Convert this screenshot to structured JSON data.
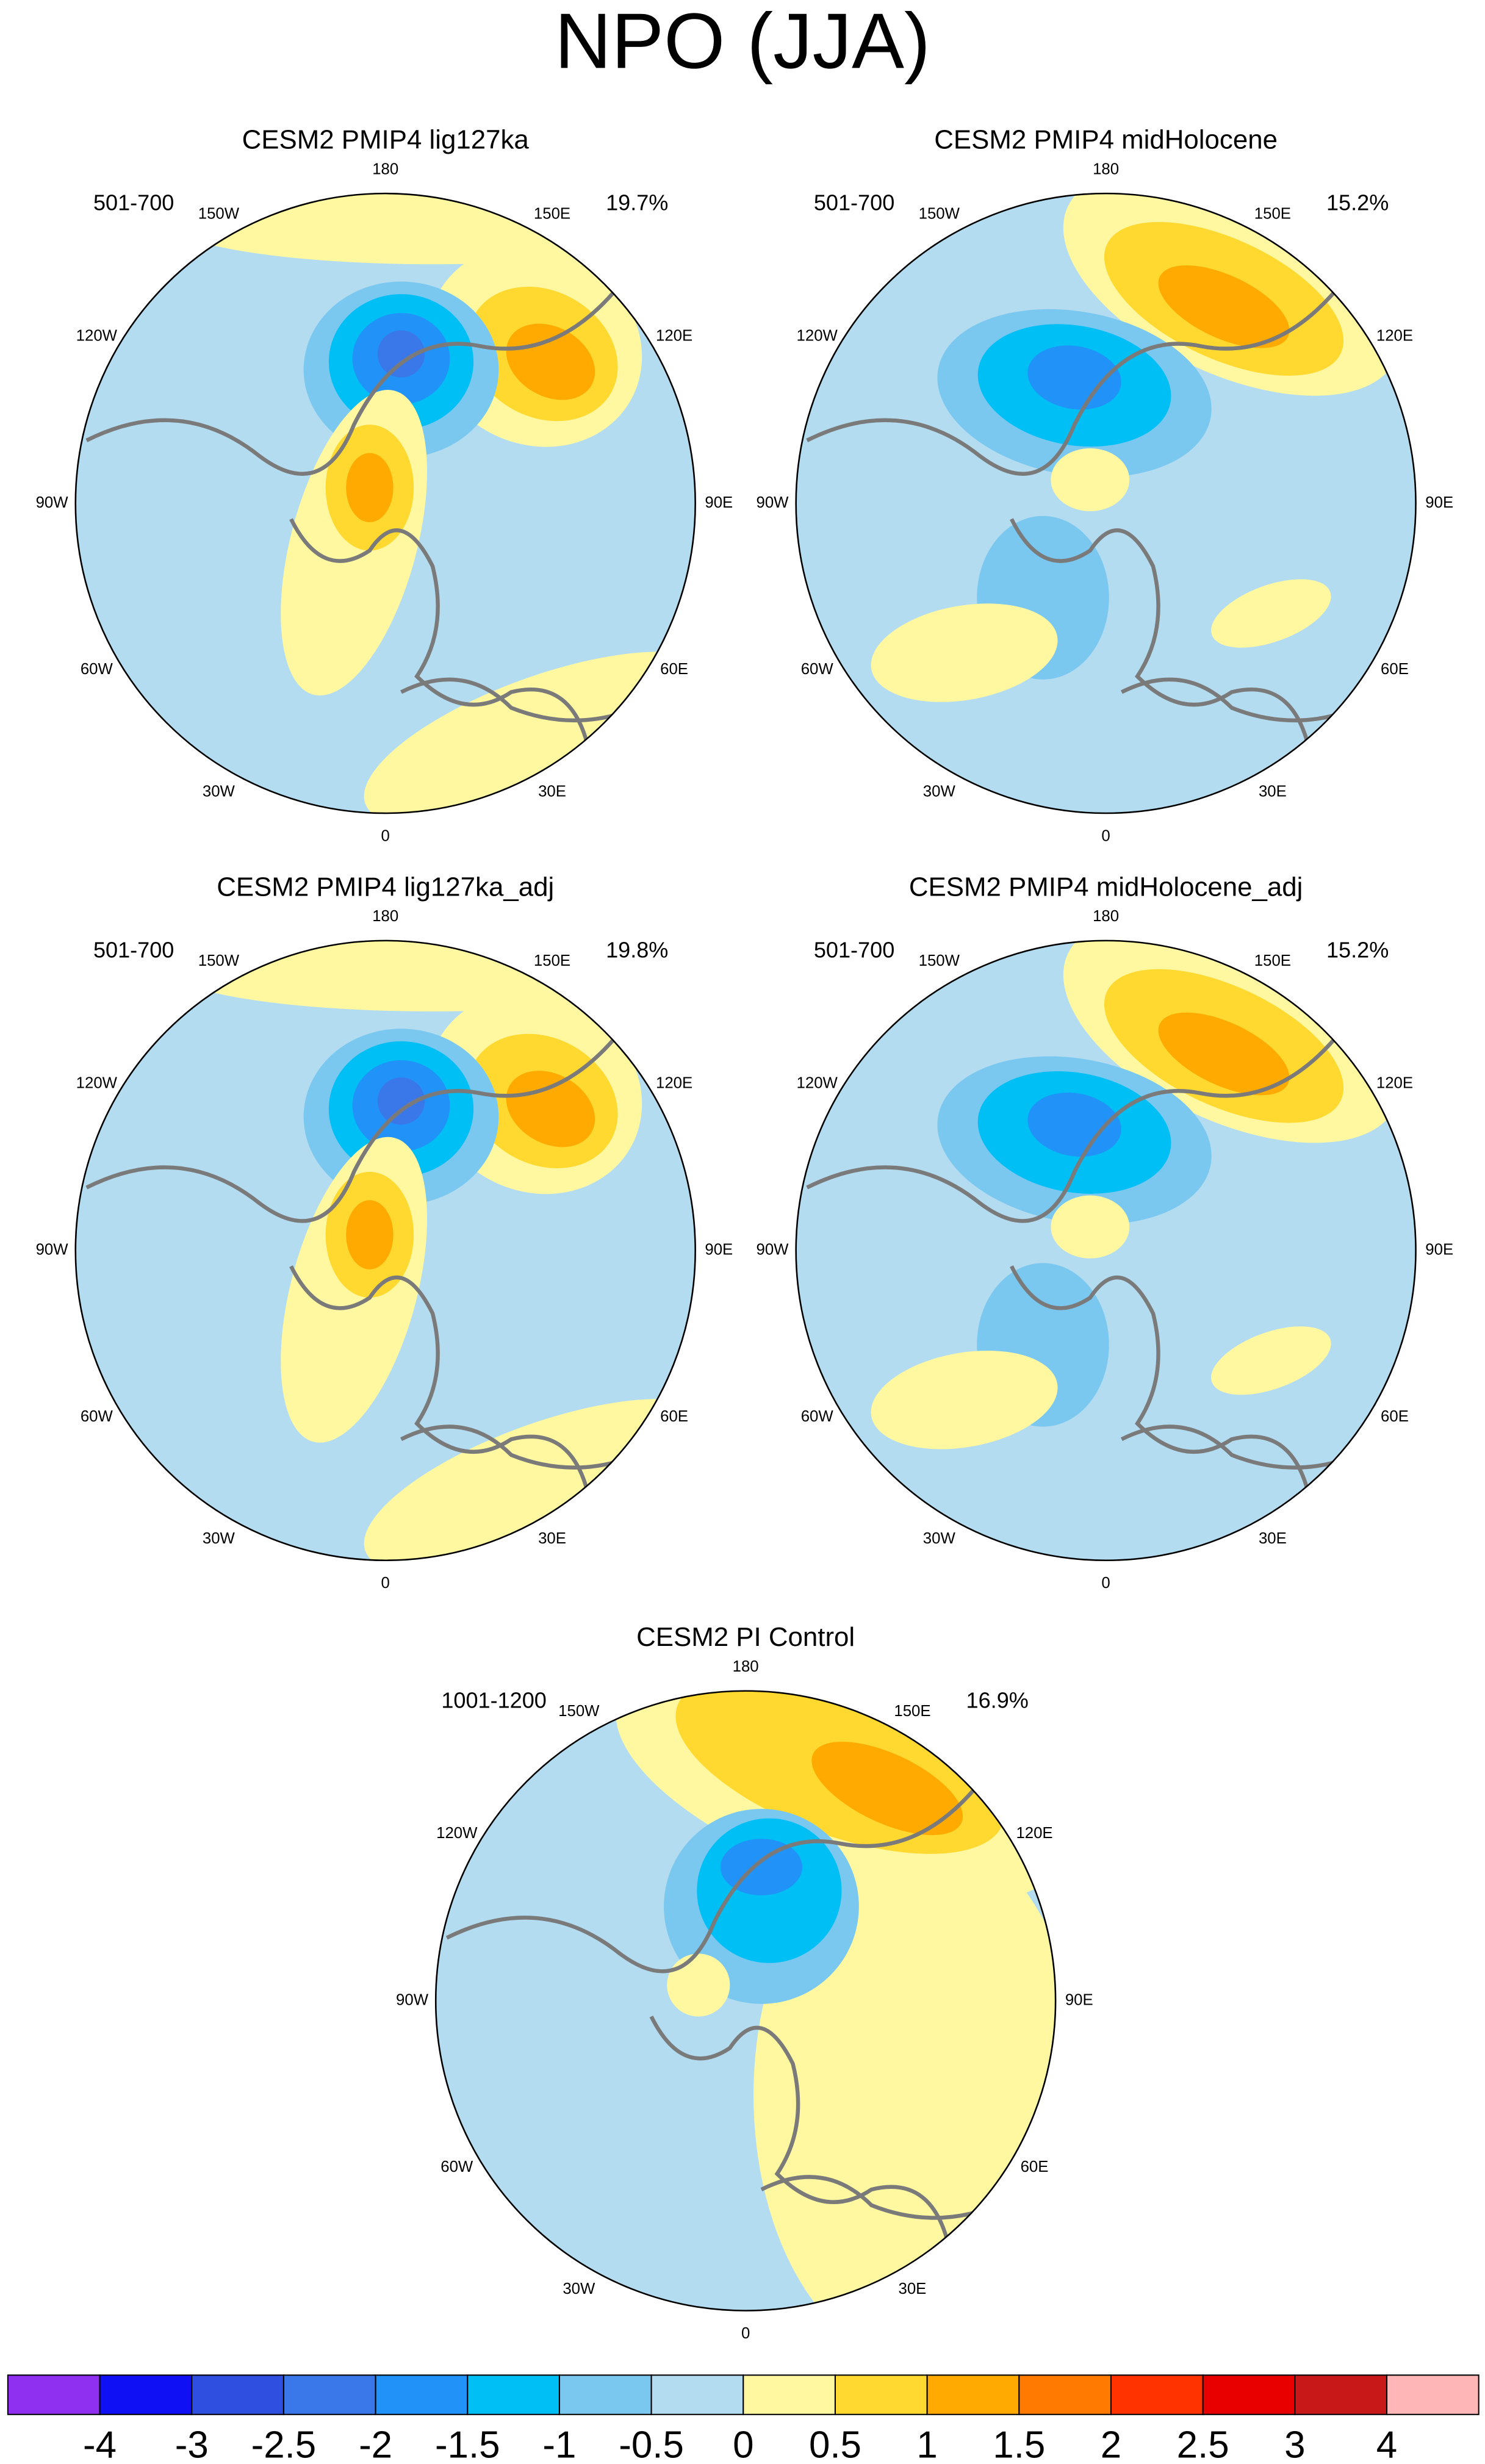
{
  "title": "NPO (JJA)",
  "panels": [
    {
      "title": "CESM2 PMIP4 lig127ka",
      "period": "501-700",
      "variance": "19.7%"
    },
    {
      "title": "CESM2 PMIP4 midHolocene",
      "period": "501-700",
      "variance": "15.2%"
    },
    {
      "title": "CESM2 PMIP4 lig127ka_adj",
      "period": "501-700",
      "variance": "19.8%"
    },
    {
      "title": "CESM2 PMIP4 midHolocene_adj",
      "period": "501-700",
      "variance": "15.2%"
    },
    {
      "title": "CESM2 PI Control",
      "period": "1001-1200",
      "variance": "16.9%"
    }
  ],
  "longitude_labels": [
    "180",
    "150E",
    "120E",
    "90E",
    "60E",
    "30E",
    "0",
    "30W",
    "60W",
    "90W",
    "120W",
    "150W"
  ],
  "colorbar": {
    "labels": [
      -4,
      -3,
      -2.5,
      -2,
      -1.5,
      -1,
      -0.5,
      0,
      0.5,
      1,
      1.5,
      2,
      2.5,
      3,
      4
    ],
    "colors": [
      "#8f2ff0",
      "#1010f5",
      "#2f4fe0",
      "#3a78ea",
      "#2092f8",
      "#00bff5",
      "#7ac8f0",
      "#b4dcf0",
      "#fff8a0",
      "#ffd830",
      "#ffaa00",
      "#ff7a00",
      "#ff3300",
      "#e80000",
      "#c81818",
      "#ffb6b6"
    ]
  }
}
